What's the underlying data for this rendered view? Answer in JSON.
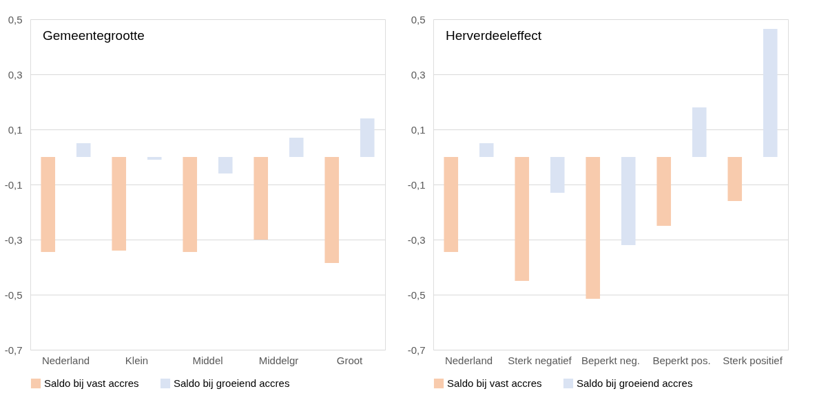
{
  "chart_data": [
    {
      "type": "bar",
      "title": "Gemeentegrootte",
      "categories": [
        "Nederland",
        "Klein",
        "Middel",
        "Middelgr",
        "Groot"
      ],
      "series": [
        {
          "name": "Saldo bij vast accres",
          "color": "#f8cbad",
          "values": [
            -0.345,
            -0.34,
            -0.345,
            -0.3,
            -0.385
          ]
        },
        {
          "name": "Saldo bij groeiend accres",
          "color": "#dae3f3",
          "values": [
            0.05,
            -0.01,
            -0.06,
            0.07,
            0.14
          ]
        }
      ],
      "ylim": [
        -0.7,
        0.5
      ],
      "yticks": [
        {
          "value": -0.7,
          "label": "-0,7"
        },
        {
          "value": -0.5,
          "label": "-0,5"
        },
        {
          "value": -0.3,
          "label": "-0,3"
        },
        {
          "value": -0.1,
          "label": "-0,1"
        },
        {
          "value": 0.1,
          "label": "0,1"
        },
        {
          "value": 0.3,
          "label": "0,3"
        },
        {
          "value": 0.5,
          "label": "0,5"
        }
      ],
      "grid": "y",
      "legend": "bottom"
    },
    {
      "type": "bar",
      "title": "Herverdeeleffect",
      "categories": [
        "Nederland",
        "Sterk negatief",
        "Beperkt neg.",
        "Beperkt pos.",
        "Sterk positief"
      ],
      "series": [
        {
          "name": "Saldo bij vast accres",
          "color": "#f8cbad",
          "values": [
            -0.345,
            -0.45,
            -0.515,
            -0.25,
            -0.16
          ]
        },
        {
          "name": "Saldo bij groeiend accres",
          "color": "#dae3f3",
          "values": [
            0.05,
            -0.13,
            -0.32,
            0.18,
            0.465
          ]
        }
      ],
      "ylim": [
        -0.7,
        0.5
      ],
      "yticks": [
        {
          "value": -0.7,
          "label": "-0,7"
        },
        {
          "value": -0.5,
          "label": "-0,5"
        },
        {
          "value": -0.3,
          "label": "-0,3"
        },
        {
          "value": -0.1,
          "label": "-0,1"
        },
        {
          "value": 0.1,
          "label": "0,1"
        },
        {
          "value": 0.3,
          "label": "0,3"
        },
        {
          "value": 0.5,
          "label": "0,5"
        }
      ],
      "grid": "y",
      "legend": "bottom"
    }
  ]
}
